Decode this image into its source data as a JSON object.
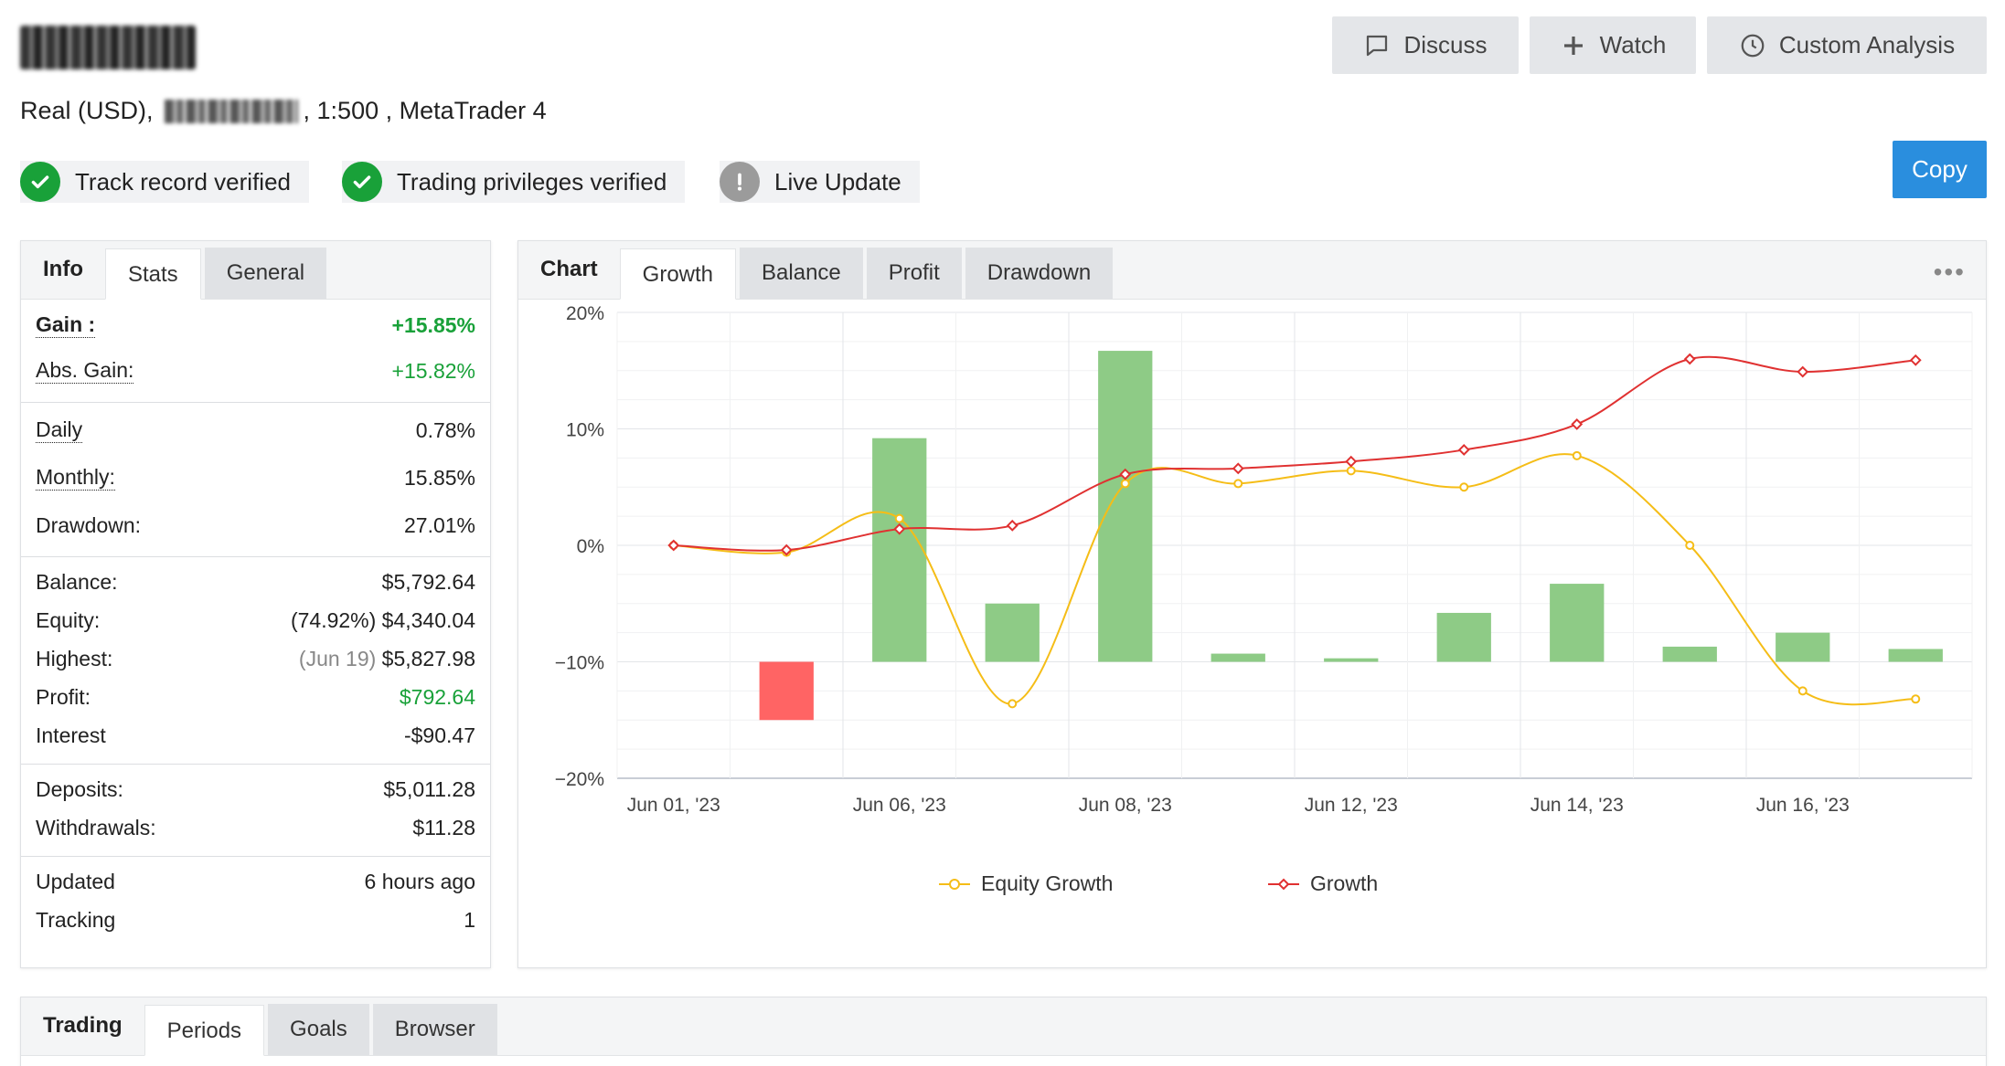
{
  "header": {
    "account_name": "ACC01",
    "subline": {
      "account_type": "Real (USD),",
      "leverage": ", 1:500 , MetaTrader 4"
    },
    "buttons": {
      "discuss": "Discuss",
      "watch": "Watch",
      "custom_analysis": "Custom Analysis",
      "copy": "Copy"
    },
    "badges": {
      "track_record": "Track record verified",
      "trading_privileges": "Trading privileges verified",
      "live_update": "Live Update"
    }
  },
  "info_panel": {
    "tabs": {
      "heading": "Info",
      "stats": "Stats",
      "general": "General"
    },
    "gain": {
      "label": "Gain :",
      "value": "+15.85%"
    },
    "abs_gain": {
      "label": "Abs. Gain:",
      "value": "+15.82%"
    },
    "daily": {
      "label": "Daily",
      "value": "0.78%"
    },
    "monthly": {
      "label": "Monthly:",
      "value": "15.85%"
    },
    "drawdown": {
      "label": "Drawdown:",
      "value": "27.01%"
    },
    "balance": {
      "label": "Balance:",
      "value": "$5,792.64"
    },
    "equity": {
      "label": "Equity:",
      "pct": "(74.92%)",
      "value": "$4,340.04"
    },
    "highest": {
      "label": "Highest:",
      "date": "(Jun 19)",
      "value": "$5,827.98"
    },
    "profit": {
      "label": "Profit:",
      "value": "$792.64"
    },
    "interest": {
      "label": "Interest",
      "value": "-$90.47"
    },
    "deposits": {
      "label": "Deposits:",
      "value": "$5,011.28"
    },
    "withdrawals": {
      "label": "Withdrawals:",
      "value": "$11.28"
    },
    "updated": {
      "label": "Updated",
      "value": "6 hours ago"
    },
    "tracking": {
      "label": "Tracking",
      "value": "1"
    }
  },
  "chart_panel": {
    "tabs": {
      "heading": "Chart",
      "growth": "Growth",
      "balance": "Balance",
      "profit": "Profit",
      "drawdown": "Drawdown"
    },
    "more": "•••"
  },
  "chart_data": {
    "type": "bar",
    "y_ticks": [
      "20%",
      "10%",
      "0%",
      "−10%",
      "−20%"
    ],
    "ylim": [
      -20,
      20
    ],
    "x_tick_labels": [
      "Jun 01, '23",
      "Jun 06, '23",
      "Jun 08, '23",
      "Jun 12, '23",
      "Jun 14, '23",
      "Jun 16, '23"
    ],
    "x_tick_positions": [
      0,
      2,
      4,
      6,
      8,
      10
    ],
    "n_points": 12,
    "bars": {
      "baseline": -10,
      "values": [
        null,
        -15.0,
        9.2,
        -5.0,
        16.7,
        -9.3,
        -9.7,
        -5.8,
        -3.3,
        -8.7,
        -7.5,
        -8.9
      ],
      "colors": {
        "positive": "#8ecb86",
        "negative": "#ff6464"
      }
    },
    "series": [
      {
        "name": "Equity Growth",
        "color": "#f5bd17",
        "values": [
          0.0,
          -0.6,
          2.3,
          -13.6,
          5.3,
          5.3,
          6.4,
          5.0,
          7.7,
          0.0,
          -12.5,
          -13.2
        ]
      },
      {
        "name": "Growth",
        "color": "#e03131",
        "values": [
          0.0,
          -0.4,
          1.4,
          1.7,
          6.1,
          6.6,
          7.2,
          8.2,
          10.4,
          16.0,
          14.9,
          15.9
        ]
      }
    ],
    "grid": true,
    "legend_position": "bottom"
  },
  "trading_panel": {
    "tabs": {
      "heading": "Trading",
      "periods": "Periods",
      "goals": "Goals",
      "browser": "Browser"
    }
  }
}
